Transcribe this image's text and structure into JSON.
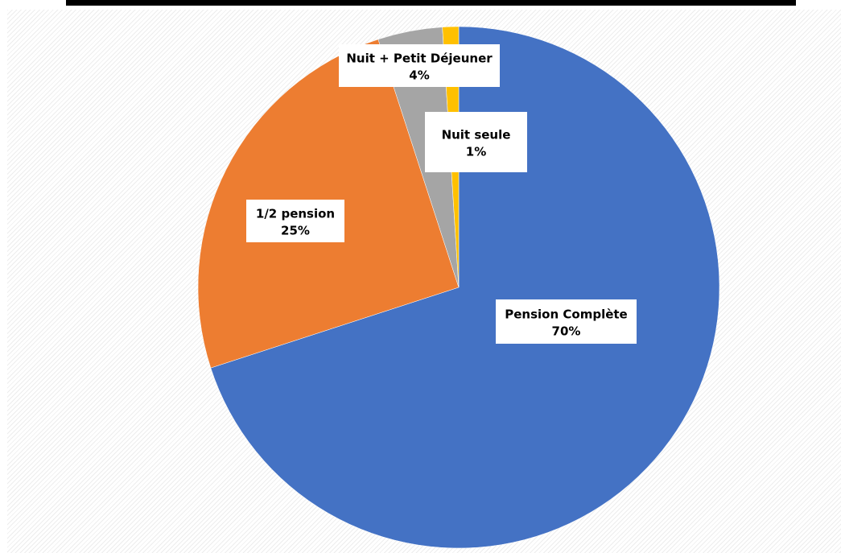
{
  "chart_data": {
    "type": "pie",
    "start_angle_deg": 0,
    "direction": "clockwise",
    "slices": [
      {
        "label": "Pension Complète",
        "value": 70,
        "value_label": "70%",
        "color": "#4472C4"
      },
      {
        "label": "1/2 pension",
        "value": 25,
        "value_label": "25%",
        "color": "#ED7D31"
      },
      {
        "label": "Nuit + Petit Déjeuner",
        "value": 4,
        "value_label": "4%",
        "color": "#A5A5A5"
      },
      {
        "label": "Nuit seule",
        "value": 1,
        "value_label": "1%",
        "color": "#FFC000"
      }
    ],
    "legend": "none"
  }
}
